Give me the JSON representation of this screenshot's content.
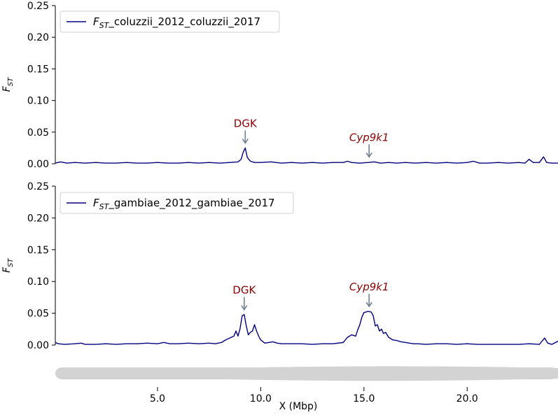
{
  "chart_data": [
    {
      "type": "line",
      "ylabel_base": "F",
      "ylabel_sub": "ST",
      "ylim": [
        0,
        0.25
      ],
      "yticks": [
        "0.00",
        "0.05",
        "0.10",
        "0.15",
        "0.20",
        "0.25"
      ],
      "xlim": [
        0.05,
        24.4
      ],
      "legend_placement": "upper-left",
      "series": [
        {
          "name_base": "F",
          "name_sub": "ST",
          "name_rest": "_coluzzii_2012_coluzzii_2017",
          "color": "#000080",
          "points": [
            [
              0.05,
              0.001
            ],
            [
              0.3,
              0.003
            ],
            [
              0.6,
              0.001
            ],
            [
              1.0,
              0.002
            ],
            [
              1.5,
              0.001
            ],
            [
              2.0,
              0.002
            ],
            [
              2.5,
              0.001
            ],
            [
              3.0,
              0.001
            ],
            [
              3.5,
              0.002
            ],
            [
              4.0,
              0.001
            ],
            [
              4.5,
              0.001
            ],
            [
              5.0,
              0.002
            ],
            [
              5.5,
              0.001
            ],
            [
              6.0,
              0.001
            ],
            [
              6.5,
              0.002
            ],
            [
              7.0,
              0.001
            ],
            [
              7.5,
              0.002
            ],
            [
              8.0,
              0.001
            ],
            [
              8.5,
              0.002
            ],
            [
              8.9,
              0.003
            ],
            [
              9.05,
              0.007
            ],
            [
              9.15,
              0.018
            ],
            [
              9.25,
              0.025
            ],
            [
              9.35,
              0.01
            ],
            [
              9.5,
              0.004
            ],
            [
              9.7,
              0.002
            ],
            [
              10.0,
              0.002
            ],
            [
              10.5,
              0.003
            ],
            [
              11.0,
              0.001
            ],
            [
              11.5,
              0.002
            ],
            [
              12.0,
              0.001
            ],
            [
              12.5,
              0.002
            ],
            [
              13.0,
              0.001
            ],
            [
              13.5,
              0.002
            ],
            [
              14.0,
              0.002
            ],
            [
              14.2,
              0.004
            ],
            [
              14.4,
              0.002
            ],
            [
              14.8,
              0.001
            ],
            [
              15.2,
              0.002
            ],
            [
              15.5,
              0.003
            ],
            [
              15.8,
              0.001
            ],
            [
              16.2,
              0.002
            ],
            [
              16.6,
              0.001
            ],
            [
              17.0,
              0.002
            ],
            [
              17.5,
              0.001
            ],
            [
              18.0,
              0.002
            ],
            [
              18.5,
              0.001
            ],
            [
              19.0,
              0.002
            ],
            [
              19.5,
              0.001
            ],
            [
              20.0,
              0.002
            ],
            [
              20.3,
              0.004
            ],
            [
              20.6,
              0.001
            ],
            [
              21.0,
              0.001
            ],
            [
              21.5,
              0.002
            ],
            [
              22.0,
              0.001
            ],
            [
              22.5,
              0.002
            ],
            [
              22.8,
              0.001
            ],
            [
              23.0,
              0.007
            ],
            [
              23.2,
              0.002
            ],
            [
              23.5,
              0.002
            ],
            [
              23.7,
              0.011
            ],
            [
              23.85,
              0.002
            ],
            [
              24.1,
              0.001
            ],
            [
              24.4,
              0.001
            ]
          ]
        }
      ],
      "annotations": [
        {
          "label": "DGK",
          "italic": false,
          "x": 9.25,
          "y": 0.025
        },
        {
          "label": "Cyp9k1",
          "italic": true,
          "x": 15.25,
          "y": 0.003
        }
      ]
    },
    {
      "type": "line",
      "ylabel_base": "F",
      "ylabel_sub": "ST",
      "ylim": [
        0,
        0.25
      ],
      "yticks": [
        "0.00",
        "0.05",
        "0.10",
        "0.15",
        "0.20",
        "0.25"
      ],
      "xlim": [
        0.05,
        24.4
      ],
      "xticks": [
        5.0,
        10.0,
        15.0,
        20.0
      ],
      "xtick_labels": [
        "5.0",
        "10.0",
        "15.0",
        "20.0"
      ],
      "xlabel": "X (Mbp)",
      "legend_placement": "upper-left",
      "series": [
        {
          "name_base": "F",
          "name_sub": "ST",
          "name_rest": "_gambiae_2012_gambiae_2017",
          "color": "#000080",
          "points": [
            [
              0.05,
              0.004
            ],
            [
              0.2,
              0.002
            ],
            [
              0.5,
              0.001
            ],
            [
              1.0,
              0.002
            ],
            [
              1.3,
              0.003
            ],
            [
              1.5,
              0.001
            ],
            [
              2.0,
              0.001
            ],
            [
              2.5,
              0.002
            ],
            [
              3.0,
              0.001
            ],
            [
              3.5,
              0.002
            ],
            [
              4.0,
              0.002
            ],
            [
              4.5,
              0.003
            ],
            [
              5.0,
              0.002
            ],
            [
              5.3,
              0.004
            ],
            [
              5.6,
              0.002
            ],
            [
              6.0,
              0.002
            ],
            [
              6.5,
              0.003
            ],
            [
              7.0,
              0.002
            ],
            [
              7.5,
              0.003
            ],
            [
              7.8,
              0.002
            ],
            [
              8.1,
              0.004
            ],
            [
              8.3,
              0.008
            ],
            [
              8.5,
              0.011
            ],
            [
              8.7,
              0.014
            ],
            [
              8.8,
              0.022
            ],
            [
              8.9,
              0.014
            ],
            [
              9.0,
              0.026
            ],
            [
              9.1,
              0.046
            ],
            [
              9.2,
              0.048
            ],
            [
              9.3,
              0.03
            ],
            [
              9.4,
              0.016
            ],
            [
              9.5,
              0.02
            ],
            [
              9.6,
              0.022
            ],
            [
              9.7,
              0.032
            ],
            [
              9.8,
              0.022
            ],
            [
              9.9,
              0.014
            ],
            [
              10.0,
              0.008
            ],
            [
              10.2,
              0.003
            ],
            [
              10.4,
              0.004
            ],
            [
              10.6,
              0.005
            ],
            [
              10.8,
              0.003
            ],
            [
              11.0,
              0.002
            ],
            [
              11.5,
              0.002
            ],
            [
              12.0,
              0.002
            ],
            [
              12.5,
              0.001
            ],
            [
              13.0,
              0.002
            ],
            [
              13.5,
              0.002
            ],
            [
              14.0,
              0.004
            ],
            [
              14.2,
              0.012
            ],
            [
              14.4,
              0.016
            ],
            [
              14.6,
              0.014
            ],
            [
              14.7,
              0.024
            ],
            [
              14.8,
              0.032
            ],
            [
              14.9,
              0.044
            ],
            [
              15.0,
              0.051
            ],
            [
              15.2,
              0.053
            ],
            [
              15.35,
              0.052
            ],
            [
              15.45,
              0.046
            ],
            [
              15.55,
              0.03
            ],
            [
              15.65,
              0.032
            ],
            [
              15.75,
              0.022
            ],
            [
              15.85,
              0.025
            ],
            [
              15.95,
              0.018
            ],
            [
              16.05,
              0.02
            ],
            [
              16.2,
              0.012
            ],
            [
              16.4,
              0.008
            ],
            [
              16.6,
              0.007
            ],
            [
              16.8,
              0.005
            ],
            [
              17.0,
              0.004
            ],
            [
              17.2,
              0.003
            ],
            [
              17.4,
              0.002
            ],
            [
              17.6,
              0.002
            ],
            [
              18.0,
              0.001
            ],
            [
              18.5,
              0.002
            ],
            [
              19.0,
              0.002
            ],
            [
              19.5,
              0.001
            ],
            [
              20.0,
              0.002
            ],
            [
              20.5,
              0.001
            ],
            [
              21.0,
              0.001
            ],
            [
              21.5,
              0.001
            ],
            [
              22.0,
              0.001
            ],
            [
              22.5,
              0.001
            ],
            [
              23.0,
              0.002
            ],
            [
              23.5,
              0.001
            ],
            [
              23.75,
              0.011
            ],
            [
              23.9,
              0.003
            ],
            [
              24.1,
              0.001
            ],
            [
              24.4,
              0.006
            ]
          ]
        }
      ],
      "annotations": [
        {
          "label": "DGK",
          "italic": false,
          "x": 9.2,
          "y": 0.048
        },
        {
          "label": "Cyp9k1",
          "italic": true,
          "x": 15.25,
          "y": 0.053
        }
      ]
    }
  ]
}
